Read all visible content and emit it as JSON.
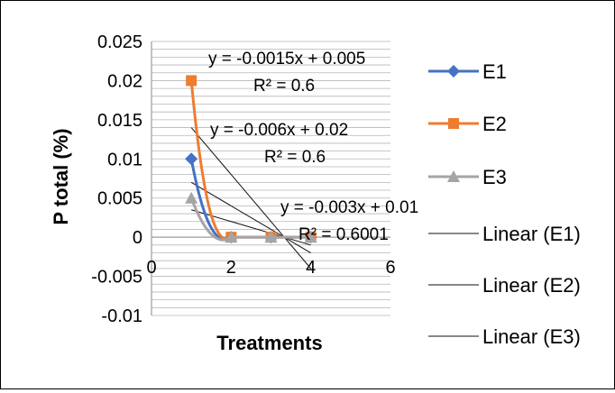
{
  "chart_data": {
    "type": "scatter",
    "title": "",
    "xlabel": "Treatments",
    "ylabel": "P total (%)",
    "xlim": [
      0,
      6
    ],
    "ylim": [
      -0.01,
      0.025
    ],
    "x_ticks": [
      "0",
      "2",
      "4",
      "6"
    ],
    "y_ticks": [
      "0.025",
      "0.02",
      "0.015",
      "0.01",
      "0.005",
      "0",
      "-0.005",
      "-0.01"
    ],
    "grid": true,
    "legend_position": "right",
    "series": [
      {
        "name": "E1",
        "color": "#4472C4",
        "marker": "diamond",
        "x": [
          1,
          2,
          3,
          4
        ],
        "y": [
          0.01,
          0,
          0,
          0
        ]
      },
      {
        "name": "E2",
        "color": "#ED7D31",
        "marker": "square",
        "x": [
          1,
          2,
          3,
          4
        ],
        "y": [
          0.02,
          0,
          0,
          0
        ]
      },
      {
        "name": "E3",
        "color": "#A5A5A5",
        "marker": "triangle",
        "x": [
          1,
          2,
          3,
          4
        ],
        "y": [
          0.005,
          0,
          0,
          0
        ]
      }
    ],
    "trendlines": [
      {
        "name": "Linear (E1)",
        "slope": -0.003,
        "intercept": 0.01,
        "equation": "y = -0.003x + 0.01",
        "r2": "R² = 0.6001"
      },
      {
        "name": "Linear (E2)",
        "slope": -0.006,
        "intercept": 0.02,
        "equation": "y = -0.006x + 0.02",
        "r2": "R² = 0.6"
      },
      {
        "name": "Linear (E3)",
        "slope": -0.0015,
        "intercept": 0.005,
        "equation": "y = -0.0015x + 0.005",
        "r2": "R² = 0.6"
      }
    ]
  }
}
